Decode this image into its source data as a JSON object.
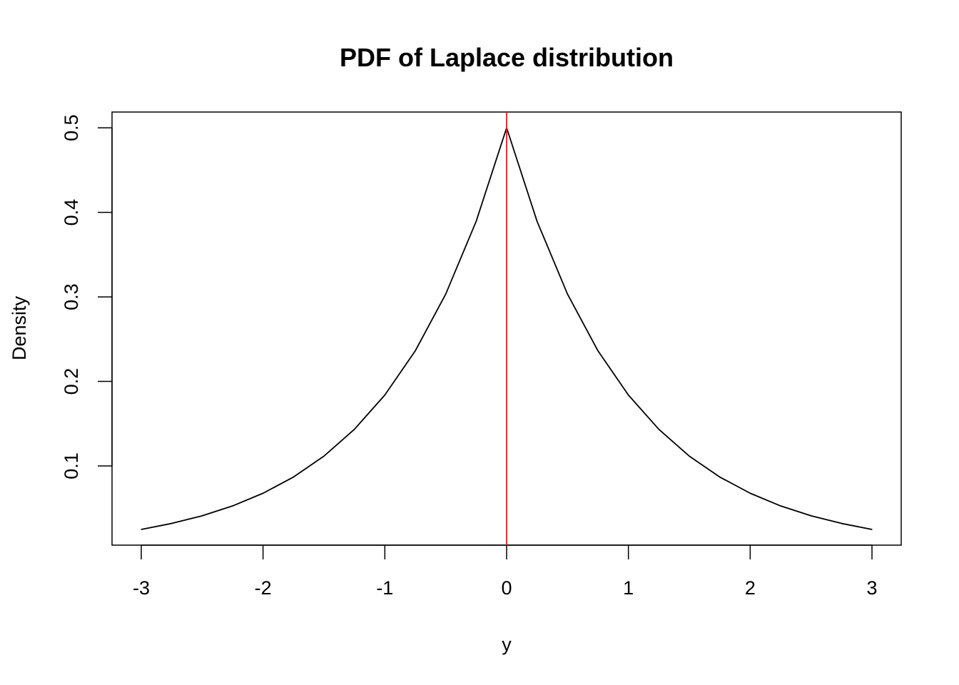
{
  "chart_data": {
    "type": "line",
    "title": "PDF of Laplace distribution",
    "xlabel": "y",
    "ylabel": "Density",
    "xlim": [
      -3.24,
      3.24
    ],
    "ylim": [
      0.0063,
      0.5187
    ],
    "x_ticks": [
      -3,
      -2,
      -1,
      0,
      1,
      2,
      3
    ],
    "x_tick_labels": [
      "-3",
      "-2",
      "-1",
      "0",
      "1",
      "2",
      "3"
    ],
    "y_ticks": [
      0.1,
      0.2,
      0.3,
      0.4,
      0.5
    ],
    "y_tick_labels": [
      "0.1",
      "0.2",
      "0.3",
      "0.4",
      "0.5"
    ],
    "grid": false,
    "legend": "none",
    "series": [
      {
        "color": "#000000",
        "x": [
          -3.0,
          -2.75,
          -2.5,
          -2.25,
          -2.0,
          -1.75,
          -1.5,
          -1.25,
          -1.0,
          -0.75,
          -0.5,
          -0.25,
          0.0,
          0.25,
          0.5,
          0.75,
          1.0,
          1.25,
          1.5,
          1.75,
          2.0,
          2.25,
          2.5,
          2.75,
          3.0
        ],
        "y": [
          0.0249,
          0.032,
          0.041,
          0.0527,
          0.0677,
          0.0869,
          0.1116,
          0.1433,
          0.1839,
          0.2362,
          0.3033,
          0.3894,
          0.5,
          0.3894,
          0.3033,
          0.2362,
          0.1839,
          0.1433,
          0.1116,
          0.0869,
          0.0677,
          0.0527,
          0.041,
          0.032,
          0.0249
        ]
      }
    ],
    "reference_lines": [
      {
        "orientation": "vertical",
        "x": 0,
        "color": "#dd2222"
      }
    ]
  }
}
